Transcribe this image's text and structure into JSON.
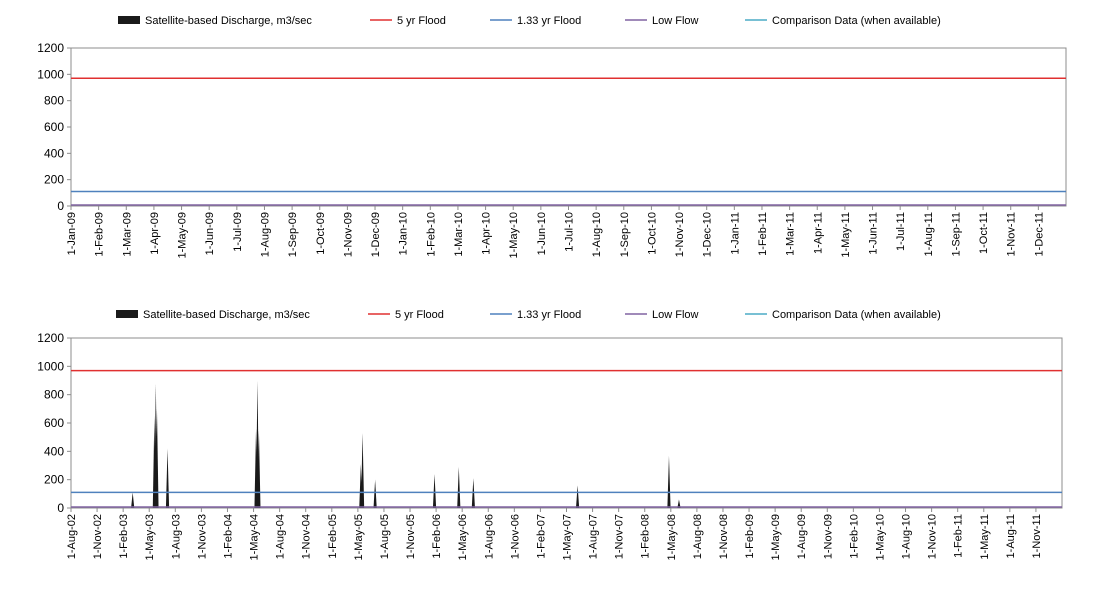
{
  "legend": [
    {
      "label": "Satellite-based Discharge, m3/sec",
      "color": "#1a1a1a",
      "kind": "area"
    },
    {
      "label": "5 yr Flood",
      "color": "#e03030",
      "kind": "line"
    },
    {
      "label": "1.33 yr Flood",
      "color": "#4f81bd",
      "kind": "line"
    },
    {
      "label": "Low Flow",
      "color": "#8064a2",
      "kind": "line"
    },
    {
      "label": "Comparison Data (when available)",
      "color": "#4bacc6",
      "kind": "line"
    }
  ],
  "chart_data": [
    {
      "type": "area",
      "ylim": [
        0,
        1200
      ],
      "yticks": [
        0,
        200,
        400,
        600,
        800,
        1000,
        1200
      ],
      "categories": [
        "1-Jan-09",
        "1-Feb-09",
        "1-Mar-09",
        "1-Apr-09",
        "1-May-09",
        "1-Jun-09",
        "1-Jul-09",
        "1-Aug-09",
        "1-Sep-09",
        "1-Oct-09",
        "1-Nov-09",
        "1-Dec-09",
        "1-Jan-10",
        "1-Feb-10",
        "1-Mar-10",
        "1-Apr-10",
        "1-May-10",
        "1-Jun-10",
        "1-Jul-10",
        "1-Aug-10",
        "1-Sep-10",
        "1-Oct-10",
        "1-Nov-10",
        "1-Dec-10",
        "1-Jan-11",
        "1-Feb-11",
        "1-Mar-11",
        "1-Apr-11",
        "1-May-11",
        "1-Jun-11",
        "1-Jul-11",
        "1-Aug-11",
        "1-Sep-11",
        "1-Oct-11",
        "1-Nov-11",
        "1-Dec-11"
      ],
      "reference_lines": {
        "5 yr Flood": 970,
        "1.33 yr Flood": 110,
        "Low Flow": 0
      },
      "series": [
        {
          "name": "Satellite-based Discharge, m3/sec",
          "points": []
        }
      ]
    },
    {
      "type": "area",
      "ylim": [
        0,
        1200
      ],
      "yticks": [
        0,
        200,
        400,
        600,
        800,
        1000,
        1200
      ],
      "categories": [
        "1-Aug-02",
        "1-Nov-02",
        "1-Feb-03",
        "1-May-03",
        "1-Aug-03",
        "1-Nov-03",
        "1-Feb-04",
        "1-May-04",
        "1-Aug-04",
        "1-Nov-04",
        "1-Feb-05",
        "1-May-05",
        "1-Aug-05",
        "1-Nov-05",
        "1-Feb-06",
        "1-May-06",
        "1-Aug-06",
        "1-Nov-06",
        "1-Feb-07",
        "1-May-07",
        "1-Aug-07",
        "1-Nov-07",
        "1-Feb-08",
        "1-May-08",
        "1-Aug-08",
        "1-Nov-08",
        "1-Feb-09",
        "1-May-09",
        "1-Aug-09",
        "1-Nov-09",
        "1-Feb-10",
        "1-May-10",
        "1-Aug-10",
        "1-Nov-10",
        "1-Feb-11",
        "1-May-11",
        "1-Aug-11",
        "1-Nov-11"
      ],
      "reference_lines": {
        "5 yr Flood": 970,
        "1.33 yr Flood": 110,
        "Low Flow": 0
      },
      "series": [
        {
          "name": "Satellite-based Discharge, m3/sec",
          "points": [
            {
              "x": "2003-03-05",
              "y": 110
            },
            {
              "x": "2003-05-20",
              "y": 650
            },
            {
              "x": "2003-05-25",
              "y": 880
            },
            {
              "x": "2003-05-29",
              "y": 700
            },
            {
              "x": "2003-07-05",
              "y": 420
            },
            {
              "x": "2004-05-10",
              "y": 560
            },
            {
              "x": "2004-05-15",
              "y": 900
            },
            {
              "x": "2004-05-20",
              "y": 550
            },
            {
              "x": "2005-05-12",
              "y": 310
            },
            {
              "x": "2005-05-18",
              "y": 530
            },
            {
              "x": "2005-07-01",
              "y": 200
            },
            {
              "x": "2006-01-25",
              "y": 240
            },
            {
              "x": "2006-04-20",
              "y": 290
            },
            {
              "x": "2006-06-10",
              "y": 210
            },
            {
              "x": "2007-06-10",
              "y": 160
            },
            {
              "x": "2008-04-25",
              "y": 370
            },
            {
              "x": "2008-05-30",
              "y": 60
            }
          ]
        }
      ]
    }
  ]
}
